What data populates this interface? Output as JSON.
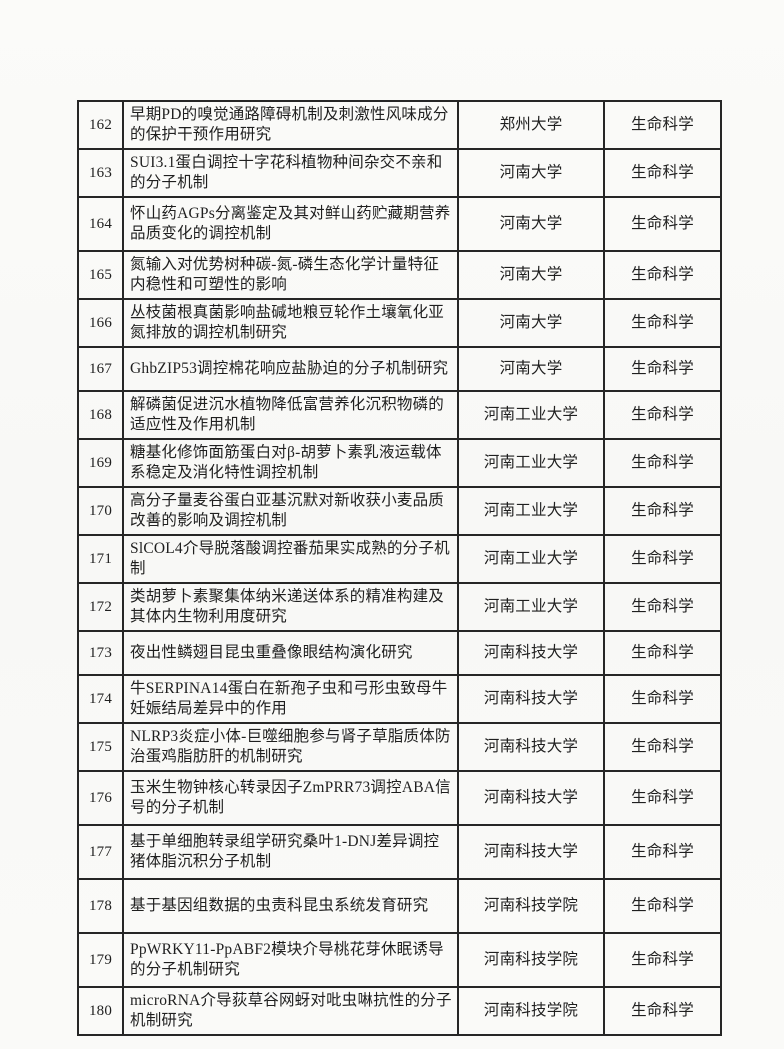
{
  "page": {
    "background": "#fafaf8",
    "border_color": "#262626",
    "text_color": "#1f1f1f"
  },
  "table": {
    "rows": [
      {
        "no": "162",
        "title": "早期PD的嗅觉通路障碍机制及刺激性风味成分的保护干预作用研究",
        "org": "郑州大学",
        "field": "生命科学"
      },
      {
        "no": "163",
        "title": "SUI3.1蛋白调控十字花科植物种间杂交不亲和的分子机制",
        "org": "河南大学",
        "field": "生命科学"
      },
      {
        "no": "164",
        "title": "怀山药AGPs分离鉴定及其对鲜山药贮藏期营养品质变化的调控机制",
        "org": "河南大学",
        "field": "生命科学"
      },
      {
        "no": "165",
        "title": "氮输入对优势树种碳-氮-磷生态化学计量特征内稳性和可塑性的影响",
        "org": "河南大学",
        "field": "生命科学"
      },
      {
        "no": "166",
        "title": "丛枝菌根真菌影响盐碱地粮豆轮作土壤氧化亚氮排放的调控机制研究",
        "org": "河南大学",
        "field": "生命科学"
      },
      {
        "no": "167",
        "title": "GhbZIP53调控棉花响应盐胁迫的分子机制研究",
        "org": "河南大学",
        "field": "生命科学"
      },
      {
        "no": "168",
        "title": "解磷菌促进沉水植物降低富营养化沉积物磷的适应性及作用机制",
        "org": "河南工业大学",
        "field": "生命科学"
      },
      {
        "no": "169",
        "title": "糖基化修饰面筋蛋白对β-胡萝卜素乳液运载体系稳定及消化特性调控机制",
        "org": "河南工业大学",
        "field": "生命科学"
      },
      {
        "no": "170",
        "title": "高分子量麦谷蛋白亚基沉默对新收获小麦品质改善的影响及调控机制",
        "org": "河南工业大学",
        "field": "生命科学"
      },
      {
        "no": "171",
        "title": "SlCOL4介导脱落酸调控番茄果实成熟的分子机制",
        "org": "河南工业大学",
        "field": "生命科学"
      },
      {
        "no": "172",
        "title": "类胡萝卜素聚集体纳米递送体系的精准构建及其体内生物利用度研究",
        "org": "河南工业大学",
        "field": "生命科学"
      },
      {
        "no": "173",
        "title": "夜出性鳞翅目昆虫重叠像眼结构演化研究",
        "org": "河南科技大学",
        "field": "生命科学"
      },
      {
        "no": "174",
        "title": "牛SERPINA14蛋白在新孢子虫和弓形虫致母牛妊娠结局差异中的作用",
        "org": "河南科技大学",
        "field": "生命科学"
      },
      {
        "no": "175",
        "title": "NLRP3炎症小体-巨噬细胞参与肾子草脂质体防治蛋鸡脂肪肝的机制研究",
        "org": "河南科技大学",
        "field": "生命科学"
      },
      {
        "no": "176",
        "title": "玉米生物钟核心转录因子ZmPRR73调控ABA信号的分子机制",
        "org": "河南科技大学",
        "field": "生命科学"
      },
      {
        "no": "177",
        "title": "基于单细胞转录组学研究桑叶1-DNJ差异调控猪体脂沉积分子机制",
        "org": "河南科技大学",
        "field": "生命科学"
      },
      {
        "no": "178",
        "title": "基于基因组数据的虫责科昆虫系统发育研究",
        "org": "河南科技学院",
        "field": "生命科学"
      },
      {
        "no": "179",
        "title": "PpWRKY11-PpABF2模块介导桃花芽休眠诱导的分子机制研究",
        "org": "河南科技学院",
        "field": "生命科学"
      },
      {
        "no": "180",
        "title": "microRNA介导荻草谷网蚜对吡虫啉抗性的分子机制研究",
        "org": "河南科技学院",
        "field": "生命科学"
      }
    ]
  }
}
